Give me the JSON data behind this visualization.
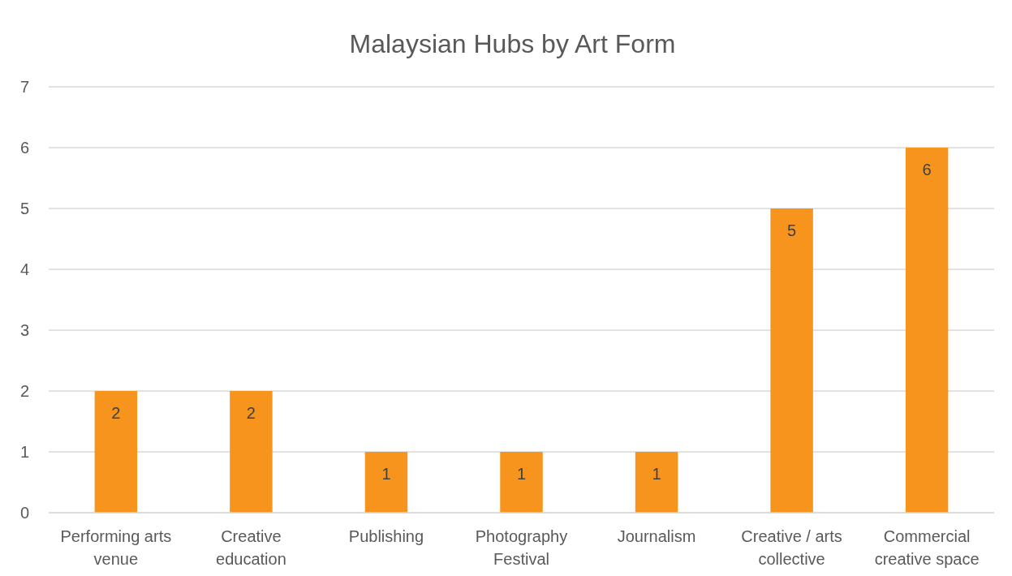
{
  "chart_data": {
    "type": "bar",
    "title": "Malaysian Hubs by Art Form",
    "categories": [
      "Performing arts venue",
      "Creative education",
      "Publishing",
      "Photography Festival",
      "Journalism",
      "Creative / arts collective",
      "Commercial creative space"
    ],
    "values": [
      2,
      2,
      1,
      1,
      1,
      5,
      6
    ],
    "color": "#f7941d",
    "ylim": [
      0,
      7
    ],
    "yticks": [
      0,
      1,
      2,
      3,
      4,
      5,
      6,
      7
    ],
    "grid": "y",
    "data_labels": true
  }
}
